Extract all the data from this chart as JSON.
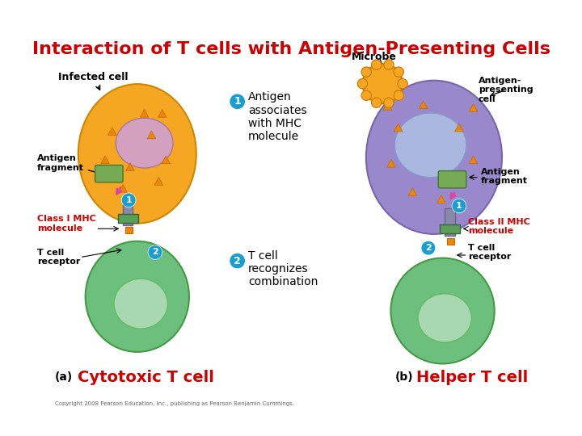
{
  "title": "Interaction of T cells with Antigen-Presenting Cells",
  "title_color": "#cc0000",
  "title_fontsize": 16,
  "bg_color": "#ffffff",
  "left_panel": {
    "infected_cell_label": "Infected cell",
    "antigen_fragment_label": "Antigen\nfragment",
    "class_mhc_label": "Class I MHC\nmolecule",
    "t_cell_receptor_label": "T cell\nreceptor",
    "cytotoxic_label": "Cytotoxic T cell",
    "panel_label": "(a)",
    "infected_cell_color": "#f5a623",
    "infected_cell_nucleus_color": "#d4a0c0",
    "t_cell_color": "#6dbf7e",
    "t_cell_nucleus_color": "#a8d8b0",
    "mhc_color": "#5a9e5a",
    "connector_color": "#8888aa"
  },
  "right_panel": {
    "microbe_label": "Microbe",
    "antigen_presenting_label": "Antigen-\npresenting\ncell",
    "antigen_fragment_label": "Antigen\nfragment",
    "class_mhc_label": "Class II MHC\nmolecule",
    "t_cell_receptor_label": "T cell\nreceptor",
    "helper_label": "Helper T cell",
    "panel_label": "(b)",
    "apc_color": "#9988cc",
    "apc_nucleus_color": "#aab8e0",
    "t_cell_color": "#6dbf7e",
    "t_cell_nucleus_color": "#a8d8b0",
    "mhc_color": "#5a9e5a",
    "microbe_color": "#f5a623"
  },
  "center_annotations": {
    "step1": "Antigen\nassociates\nwith MHC\nmolecule",
    "step2": "T cell\nrecognizes\ncombination",
    "circle_color": "#1a9ecf",
    "text_color": "#000000"
  },
  "label_color": "#cc0000",
  "black": "#000000",
  "copyright": "Copyright 2008 Pearson Education, Inc., publishing as Pearson Benjamin Cummings."
}
